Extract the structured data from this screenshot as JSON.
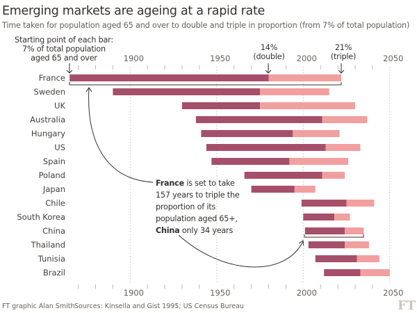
{
  "chart_data": {
    "type": "bar",
    "subtype": "stacked-range",
    "title": "Emerging markets are ageing at a rapid rate",
    "subtitle": "Time taken for population aged 65 and over to double and triple in proportion (from 7% of total population)",
    "xlim": [
      1862,
      2052
    ],
    "xticks": [
      1900,
      1950,
      2000,
      2050
    ],
    "minor_tick_step": 10,
    "grid": true,
    "series_names": [
      "7% to 14% (double)",
      "14% to 21% (triple)"
    ],
    "colors": {
      "double": "#a64f6a",
      "triple": "#f29f9f"
    },
    "categories": [
      "France",
      "Sweden",
      "UK",
      "Australia",
      "Hungary",
      "US",
      "Spain",
      "Poland",
      "Japan",
      "Chile",
      "South Korea",
      "China",
      "Thailand",
      "Tunisia",
      "Brazil"
    ],
    "start_7pct": [
      1865,
      1890,
      1930,
      1938,
      1941,
      1944,
      1947,
      1966,
      1970,
      1999,
      2000,
      2001,
      2003,
      2007,
      2012
    ],
    "year_14pct": [
      1980,
      1975,
      1975,
      2011,
      1994,
      2013,
      1992,
      2011,
      1995,
      2025,
      2018,
      2024,
      2024,
      2031,
      2033
    ],
    "year_21pct": [
      2022,
      2015,
      2030,
      2037,
      2021,
      2033,
      2026,
      2024,
      2007,
      2041,
      2027,
      2035,
      2038,
      2044,
      2050
    ]
  },
  "annotations": {
    "start_label": [
      "Starting point of each bar:",
      "7% of total population",
      "aged 65 and over"
    ],
    "double_label": [
      "14%",
      "(double)"
    ],
    "triple_label": [
      "21%",
      "(triple)"
    ],
    "note": {
      "l1_bold": "France",
      "l1_rest": " is set to take",
      "l2": "157 years to triple the",
      "l3": "proportion of its",
      "l4": "population aged 65+,",
      "l5_bold": "China",
      "l5_rest": " only 34 years"
    }
  },
  "footer": {
    "credit": "FT graphic Alan Smith",
    "sources": "Sources: Kinsella and Gist 1995; US Census Bureau",
    "logo": "FT"
  }
}
